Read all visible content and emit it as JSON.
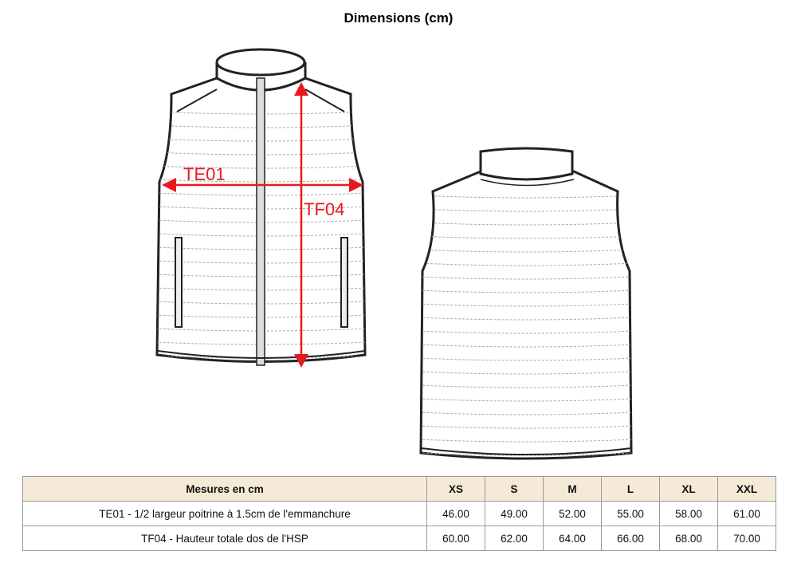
{
  "title": "Dimensions (cm)",
  "diagram": {
    "labels": {
      "chest": "TE01",
      "height": "TF04"
    },
    "arrow_color": "#e8191c"
  },
  "table": {
    "header_bg": "#f5ead8",
    "headers": [
      "Mesures en cm",
      "XS",
      "S",
      "M",
      "L",
      "XL",
      "XXL"
    ],
    "rows": [
      {
        "label": "TE01 - 1/2 largeur poitrine à 1.5cm de l'emmanchure",
        "values": [
          "46.00",
          "49.00",
          "52.00",
          "55.00",
          "58.00",
          "61.00"
        ]
      },
      {
        "label": "TF04 - Hauteur totale dos de l'HSP",
        "values": [
          "60.00",
          "62.00",
          "64.00",
          "66.00",
          "68.00",
          "70.00"
        ]
      }
    ]
  }
}
